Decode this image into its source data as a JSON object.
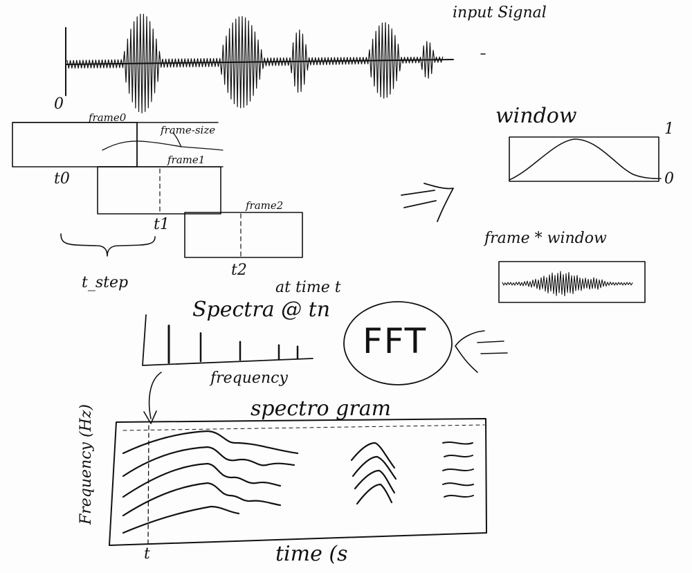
{
  "labels": {
    "input_signal": "input Signal",
    "zero_origin": "0",
    "frame0": "frame0",
    "frame_size": "frame-size",
    "frame1": "frame1",
    "frame2": "frame2",
    "t0": "t0",
    "t1": "t1",
    "t2": "t2",
    "t_step": "t_step",
    "window": "window",
    "window_one": "1",
    "window_zero": "0",
    "frame_times_window": "frame * window",
    "at_time_t": "at time t",
    "spectra": "Spectra @ tn",
    "frequency": "frequency",
    "fft": "FFT",
    "spectrogram": "spectro gram",
    "frequency_hz": "Frequency (Hz)",
    "time_s": "time (s",
    "t_marker": "t",
    "arrow": "=>"
  },
  "colors": {
    "ink": "#111111",
    "paper": "#fdfdfd"
  },
  "spectra_peaks": [
    0.92,
    0.7,
    0.45,
    0.35,
    0.3
  ]
}
